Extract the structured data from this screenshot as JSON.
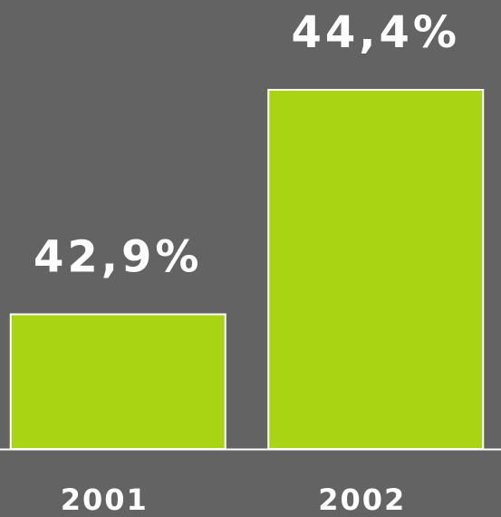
{
  "chart_data": {
    "type": "bar",
    "categories": [
      "2001",
      "2002"
    ],
    "values": [
      42.9,
      44.4
    ],
    "value_labels": [
      "42,9%",
      "44,4%"
    ],
    "color": "#a8d414",
    "ylim": [
      42,
      45
    ]
  }
}
